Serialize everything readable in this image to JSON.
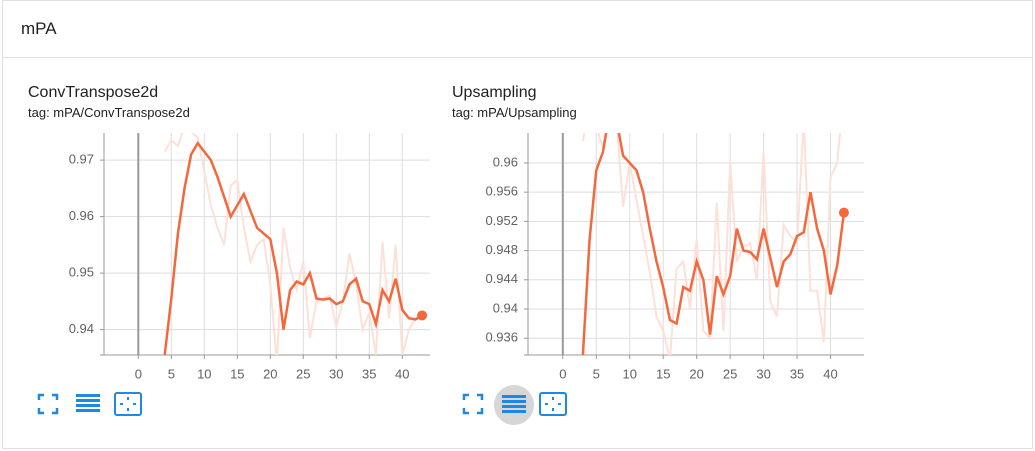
{
  "header": {
    "title": "mPA"
  },
  "cards": [
    {
      "title": "ConvTranspose2d",
      "tag": "tag: mPA/ConvTranspose2d",
      "chart": {
        "type": "line",
        "x": [
          4,
          5,
          6,
          7,
          8,
          9,
          10,
          11,
          12,
          13,
          14,
          15,
          16,
          17,
          18,
          19,
          20,
          21,
          22,
          23,
          24,
          25,
          26,
          27,
          28,
          29,
          30,
          31,
          32,
          33,
          34,
          35,
          36,
          37,
          38,
          39,
          40,
          41,
          42,
          43
        ],
        "series": [
          {
            "color": "#fde0d7",
            "values": [
              0.9715,
              0.9735,
              0.9725,
              0.976,
              0.975,
              0.974,
              0.968,
              0.962,
              0.958,
              0.955,
              0.9655,
              0.9665,
              0.958,
              0.952,
              0.955,
              0.956,
              0.948,
              0.934,
              0.958,
              0.951,
              0.947,
              0.952,
              0.9385,
              0.945,
              0.9455,
              0.946,
              0.9405,
              0.945,
              0.9535,
              0.948,
              0.94,
              0.943,
              0.9355,
              0.9555,
              0.942,
              0.955,
              0.9355,
              0.94,
              0.942,
              0.9425
            ]
          },
          {
            "color": "#f4683c",
            "values": [
              0.9355,
              0.9455,
              0.957,
              0.965,
              0.971,
              0.973,
              0.9715,
              0.97,
              0.967,
              0.9635,
              0.96,
              0.962,
              0.964,
              0.961,
              0.958,
              0.957,
              0.956,
              0.95,
              0.94,
              0.947,
              0.9485,
              0.948,
              0.95,
              0.9455,
              0.9453,
              0.9455,
              0.9445,
              0.945,
              0.948,
              0.949,
              0.945,
              0.9445,
              0.941,
              0.947,
              0.945,
              0.949,
              0.9435,
              0.942,
              0.9418,
              0.9425
            ]
          }
        ],
        "xlim": [
          -5.2,
          44.2
        ],
        "ylim": [
          0.9355,
          0.9748
        ],
        "xticks": [
          0,
          5,
          10,
          15,
          20,
          25,
          30,
          35,
          40
        ],
        "yticks": [
          0.94,
          0.95,
          0.96,
          0.97
        ],
        "grid": true
      }
    },
    {
      "title": "Upsampling",
      "tag": "tag: mPA/Upsampling",
      "chart": {
        "type": "line",
        "x": [
          3,
          4,
          5,
          6,
          7,
          8,
          9,
          10,
          11,
          12,
          13,
          14,
          15,
          16,
          17,
          18,
          19,
          20,
          21,
          22,
          23,
          24,
          25,
          26,
          27,
          28,
          29,
          30,
          31,
          32,
          33,
          34,
          35,
          36,
          37,
          38,
          39,
          40,
          41,
          42
        ],
        "series": [
          {
            "color": "#fde0d7",
            "values": [
              0.963,
              0.968,
              0.965,
              0.962,
              0.968,
              0.966,
              0.954,
              0.96,
              0.955,
              0.95,
              0.945,
              0.939,
              0.937,
              0.933,
              0.9455,
              0.9465,
              0.94,
              0.9495,
              0.937,
              0.936,
              0.9545,
              0.937,
              0.96,
              0.9465,
              0.9485,
              0.949,
              0.944,
              0.9615,
              0.941,
              0.939,
              0.9515,
              0.95,
              0.949,
              0.966,
              0.9425,
              0.9425,
              0.9355,
              0.958,
              0.96,
              0.97
            ]
          },
          {
            "color": "#f4683c",
            "values": [
              0.9337,
              0.9495,
              0.959,
              0.9615,
              0.967,
              0.966,
              0.961,
              0.96,
              0.959,
              0.956,
              0.951,
              0.9465,
              0.943,
              0.9385,
              0.938,
              0.943,
              0.9425,
              0.9465,
              0.944,
              0.9365,
              0.9445,
              0.942,
              0.9445,
              0.951,
              0.948,
              0.9478,
              0.9468,
              0.951,
              0.947,
              0.943,
              0.9465,
              0.9475,
              0.95,
              0.9505,
              0.956,
              0.951,
              0.948,
              0.942,
              0.946,
              0.9532
            ]
          }
        ],
        "xlim": [
          -5.2,
          45
        ],
        "ylim": [
          0.9337,
          0.9641
        ],
        "xticks": [
          0,
          5,
          10,
          15,
          20,
          25,
          30,
          35,
          40
        ],
        "yticks": [
          0.936,
          0.94,
          0.944,
          0.948,
          0.952,
          0.956,
          0.96
        ],
        "grid": true
      }
    }
  ]
}
